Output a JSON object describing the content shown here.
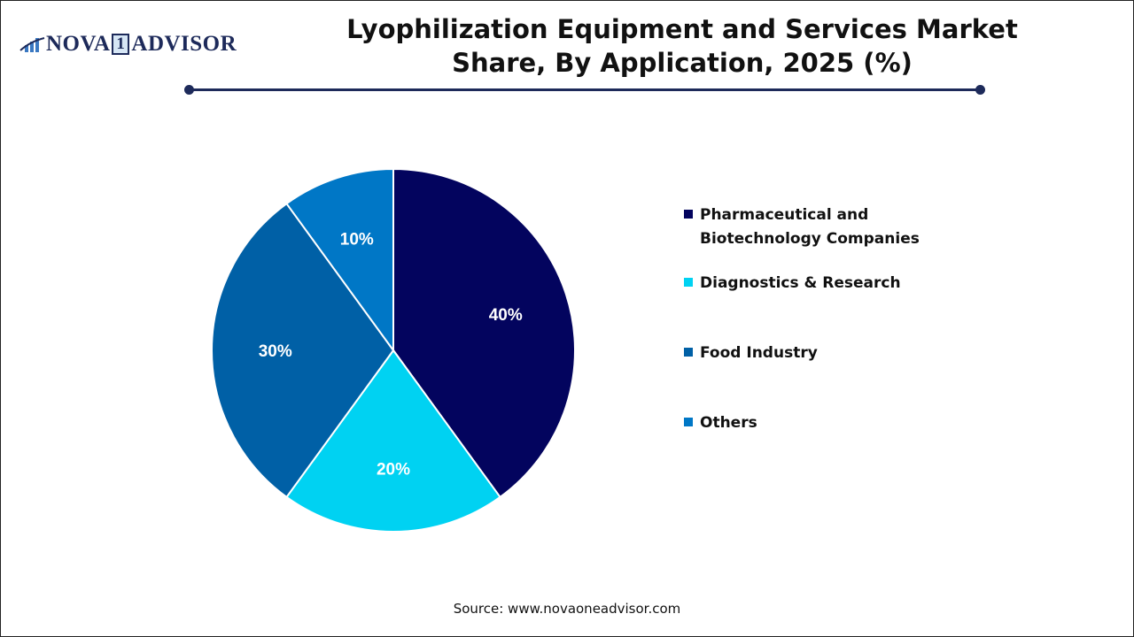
{
  "logo": {
    "text_left": "NOVA",
    "text_one": "1",
    "text_right": "ADVISOR"
  },
  "header": {
    "title_line1": "Lyophilization Equipment and Services Market",
    "title_line2": "Share, By Application, 2025 (%)"
  },
  "chart_data": {
    "type": "pie",
    "title": "Lyophilization Equipment and Services Market Share, By Application, 2025 (%)",
    "categories": [
      "Pharmaceutical and Biotechnology Companies",
      "Diagnostics & Research",
      "Food Industry",
      "Others"
    ],
    "values": [
      40,
      20,
      30,
      10
    ],
    "labels": [
      "40%",
      "20%",
      "30%",
      "10%"
    ],
    "colors": [
      "#03045e",
      "#00d2f2",
      "#0060a6",
      "#0077c6"
    ],
    "legend_position": "right"
  },
  "source": "Source: www.novaoneadvisor.com"
}
